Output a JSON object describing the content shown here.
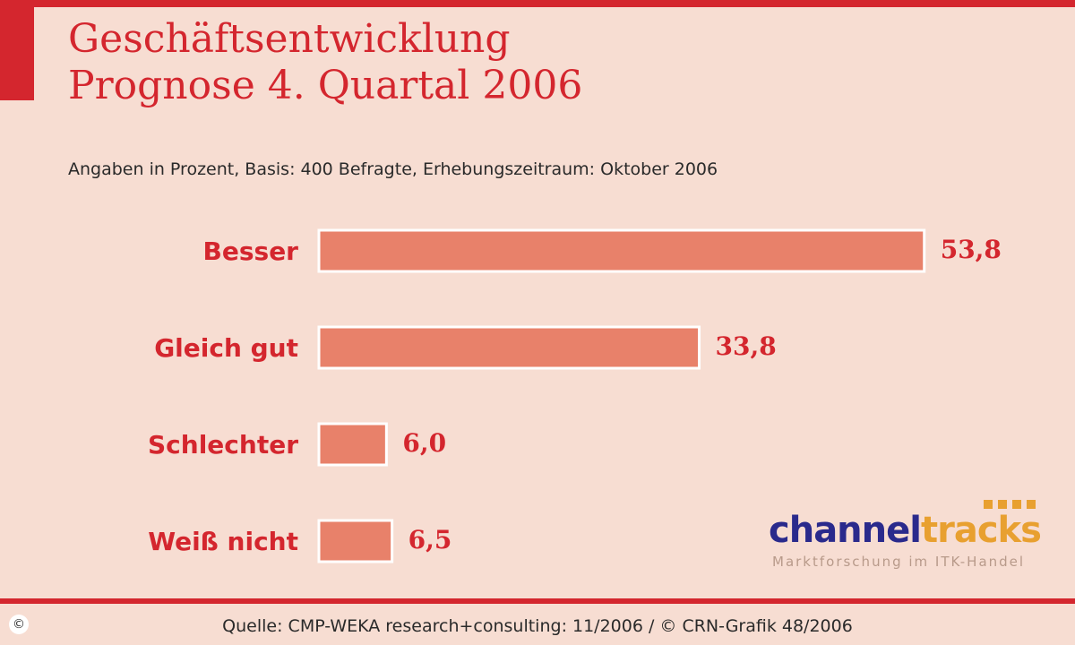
{
  "chart_data": {
    "type": "bar",
    "orientation": "horizontal",
    "title": "Geschäftsentwicklung",
    "title_line2": "Prognose 4. Quartal 2006",
    "subtitle": "Angaben in Prozent, Basis: 400 Befragte, Erhebungszeitraum: Oktober 2006",
    "categories": [
      "Besser",
      "Gleich gut",
      "Schlechter",
      "Weiß nicht"
    ],
    "values": [
      53.8,
      33.8,
      6.0,
      6.5
    ],
    "value_labels": [
      "53,8",
      "33,8",
      "6,0",
      "6,5"
    ],
    "xlim": [
      0,
      60
    ],
    "grid": false,
    "legend": "none",
    "colors": {
      "bar": "#e8816a",
      "bar_border": "#ffffff",
      "label": "#d4262e"
    }
  },
  "logo": {
    "brand_part1": "channel",
    "brand_part2": "tracks",
    "tagline": "Marktforschung im ITK-Handel"
  },
  "footer": {
    "source": "Quelle: CMP-WEKA research+consulting: 11/2006 / © CRN-Grafik 48/2006",
    "copyright_symbol": "©"
  },
  "colors": {
    "background": "#f7ddd2",
    "accent": "#d4262e"
  }
}
